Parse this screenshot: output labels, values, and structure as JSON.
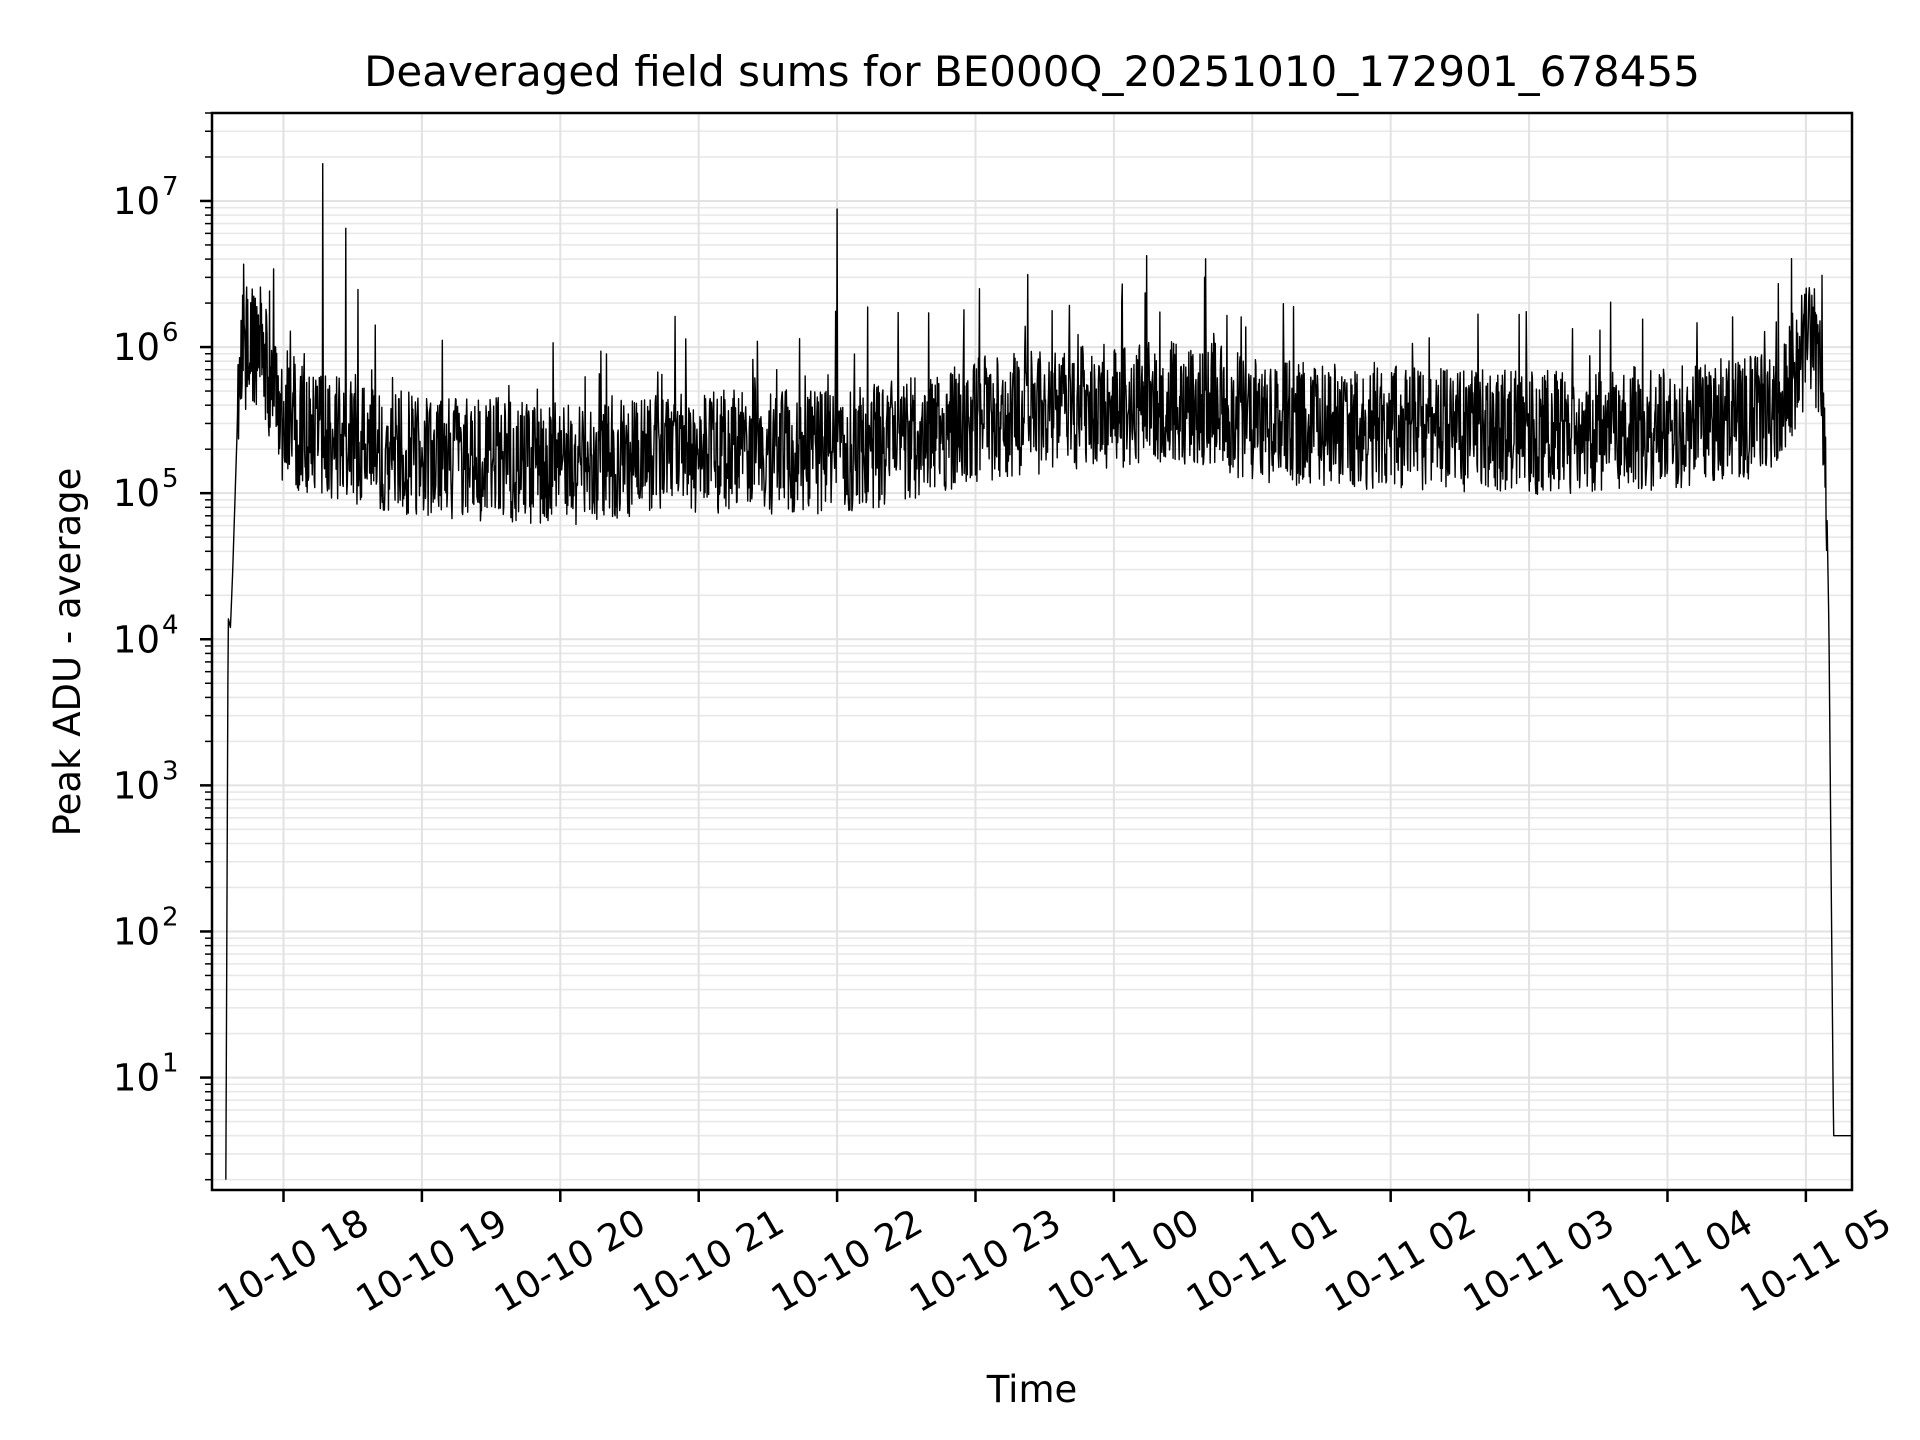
{
  "chart_data": {
    "type": "line",
    "title": "Deaveraged field sums for BE000Q_20251010_172901_678455",
    "xlabel": "Time",
    "ylabel": "Peak ADU - average",
    "yscale": "log",
    "grid": true,
    "grid_minor": true,
    "xlim": [
      "2025-10-10 17:29",
      "2025-10-11 05:20"
    ],
    "ylim": [
      1.7,
      40000000
    ],
    "x_ticks": [
      {
        "t": "2025-10-10 18:00",
        "label": "10-10 18"
      },
      {
        "t": "2025-10-10 19:00",
        "label": "10-10 19"
      },
      {
        "t": "2025-10-10 20:00",
        "label": "10-10 20"
      },
      {
        "t": "2025-10-10 21:00",
        "label": "10-10 21"
      },
      {
        "t": "2025-10-10 22:00",
        "label": "10-10 22"
      },
      {
        "t": "2025-10-10 23:00",
        "label": "10-10 23"
      },
      {
        "t": "2025-10-11 00:00",
        "label": "10-11 00"
      },
      {
        "t": "2025-10-11 01:00",
        "label": "10-11 01"
      },
      {
        "t": "2025-10-11 02:00",
        "label": "10-11 02"
      },
      {
        "t": "2025-10-11 03:00",
        "label": "10-11 03"
      },
      {
        "t": "2025-10-11 04:00",
        "label": "10-11 04"
      },
      {
        "t": "2025-10-11 05:00",
        "label": "10-11 05"
      }
    ],
    "y_ticks": [
      {
        "value": 10,
        "base": "10",
        "exp": "1"
      },
      {
        "value": 100,
        "base": "10",
        "exp": "2"
      },
      {
        "value": 1000,
        "base": "10",
        "exp": "3"
      },
      {
        "value": 10000,
        "base": "10",
        "exp": "4"
      },
      {
        "value": 100000,
        "base": "10",
        "exp": "5"
      },
      {
        "value": 1000000,
        "base": "10",
        "exp": "6"
      },
      {
        "value": 10000000,
        "base": "10",
        "exp": "7"
      }
    ],
    "series": [
      {
        "color": "#000000",
        "baseline": [
          [
            "2025-10-10 17:35",
            2
          ],
          [
            "2025-10-10 17:36",
            14000
          ],
          [
            "2025-10-10 17:37",
            12000
          ],
          [
            "2025-10-10 17:38",
            30000
          ],
          [
            "2025-10-10 17:40",
            300000
          ],
          [
            "2025-10-10 17:42",
            900000
          ],
          [
            "2025-10-10 17:45",
            1100000
          ],
          [
            "2025-10-10 17:50",
            1000000
          ],
          [
            "2025-10-10 17:55",
            500000
          ],
          [
            "2025-10-10 18:00",
            300000
          ],
          [
            "2025-10-10 18:30",
            220000
          ],
          [
            "2025-10-10 19:00",
            180000
          ],
          [
            "2025-10-10 20:00",
            160000
          ],
          [
            "2025-10-10 21:00",
            190000
          ],
          [
            "2025-10-10 22:00",
            190000
          ],
          [
            "2025-10-10 22:30",
            230000
          ],
          [
            "2025-10-10 23:00",
            320000
          ],
          [
            "2025-10-11 00:00",
            400000
          ],
          [
            "2025-10-11 00:40",
            420000
          ],
          [
            "2025-10-11 01:00",
            310000
          ],
          [
            "2025-10-11 02:00",
            280000
          ],
          [
            "2025-10-11 03:00",
            260000
          ],
          [
            "2025-10-11 04:00",
            280000
          ],
          [
            "2025-10-11 04:45",
            350000
          ],
          [
            "2025-10-11 04:55",
            700000
          ],
          [
            "2025-10-11 05:03",
            1300000
          ],
          [
            "2025-10-11 05:06",
            700000
          ],
          [
            "2025-10-11 05:09",
            100000
          ],
          [
            "2025-10-11 05:10",
            12000
          ],
          [
            "2025-10-11 05:11",
            200
          ],
          [
            "2025-10-11 05:12",
            4
          ],
          [
            "2025-10-11 05:20",
            4
          ]
        ],
        "spikes": [
          [
            "2025-10-10 18:09",
            900000
          ],
          [
            "2025-10-10 18:17",
            18000000
          ],
          [
            "2025-10-10 18:27",
            6500000
          ],
          [
            "2025-10-10 22:00",
            8800000
          ],
          [
            "2025-10-10 22:55",
            1800000
          ],
          [
            "2025-10-11 05:00",
            2000000
          ],
          [
            "2025-10-11 05:07",
            3100000
          ]
        ],
        "noise_band_factor": 2.2
      }
    ]
  }
}
